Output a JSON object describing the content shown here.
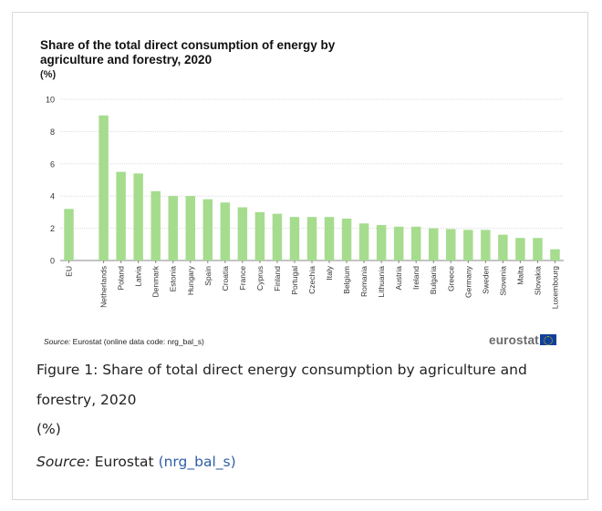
{
  "chart_data": {
    "type": "bar",
    "title": "Share of the total direct consumption of energy by agriculture and forestry, 2020",
    "unit_label": "(%)",
    "ylim": [
      0,
      10
    ],
    "yticks": [
      0,
      2,
      4,
      6,
      8,
      10
    ],
    "grid": true,
    "legend": "none",
    "bar_color": "#a6dc8e",
    "categories": [
      "EU",
      "Netherlands",
      "Poland",
      "Latvia",
      "Denmark",
      "Estonia",
      "Hungary",
      "Spain",
      "Croatia",
      "France",
      "Cyprus",
      "Finland",
      "Portugal",
      "Czechia",
      "Italy",
      "Belgium",
      "Romania",
      "Lithuania",
      "Austria",
      "Ireland",
      "Bulgaria",
      "Greece",
      "Germany",
      "Sweden",
      "Slovenia",
      "Malta",
      "Slovakia",
      "Luxembourg"
    ],
    "values": [
      3.2,
      9.0,
      5.5,
      5.4,
      4.3,
      4.0,
      4.0,
      3.8,
      3.6,
      3.3,
      3.0,
      2.9,
      2.7,
      2.7,
      2.7,
      2.6,
      2.3,
      2.2,
      2.1,
      2.1,
      2.0,
      1.95,
      1.9,
      1.9,
      1.6,
      1.4,
      1.4,
      0.7
    ]
  },
  "chart_source": {
    "label": "Source:",
    "text": "Eurostat (online data code: nrg_bal_s)"
  },
  "logo": {
    "text": "eurostat",
    "flag_color": "#10409a"
  },
  "caption": {
    "figure_text": "Figure 1: Share of total direct energy consumption by agriculture and forestry, 2020",
    "unit": "(%)",
    "source_label": "Source:",
    "source_text": "Eurostat",
    "source_link": "(nrg_bal_s)",
    "link_color": "#2f5fa8"
  }
}
